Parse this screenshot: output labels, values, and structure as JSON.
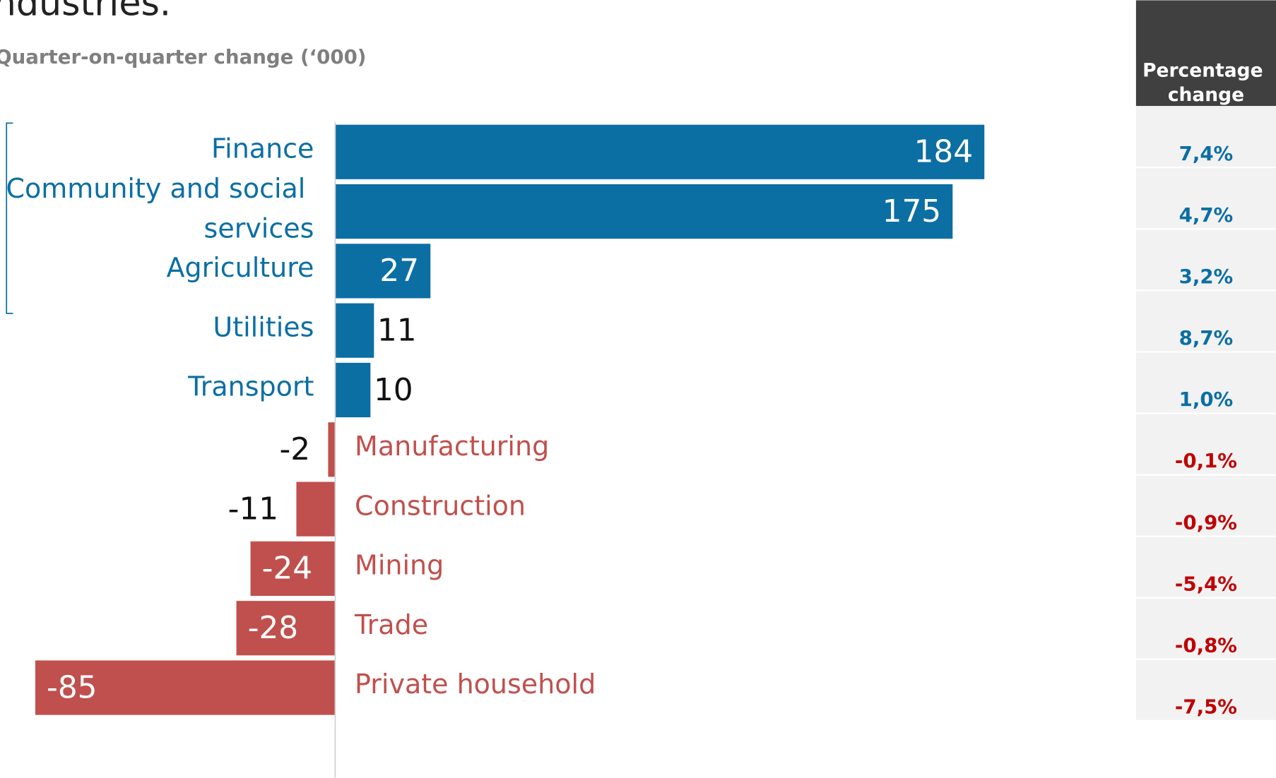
{
  "chart_data": {
    "type": "hbar",
    "title": "ndustries.",
    "subtitle": "Quarter-on-quarter change (‘000)",
    "categories": [
      "Finance",
      "Community and social services",
      "Agriculture",
      "Utilities",
      "Transport",
      "Manufacturing",
      "Construction",
      "Mining",
      "Trade",
      "Private household"
    ],
    "values": [
      184,
      175,
      27,
      11,
      10,
      -2,
      -11,
      -24,
      -28,
      -85
    ],
    "positive_color": "#0b6fa4",
    "negative_color": "#c0504d",
    "xlim": [
      -95,
      200
    ],
    "table": {
      "header": "Percentage change",
      "values": [
        "7,4%",
        "4,7%",
        "3,2%",
        "8,7%",
        "1,0%",
        "-0,1%",
        "-0,9%",
        "-5,4%",
        "-0,8%",
        "-7,5%"
      ]
    }
  }
}
